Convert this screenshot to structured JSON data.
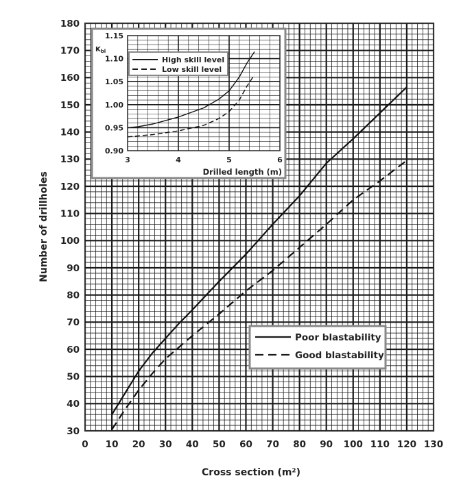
{
  "chart_data": [
    {
      "type": "line",
      "xlabel": "Cross section (m²)",
      "ylabel": "Number of drillholes",
      "xlim": [
        0,
        130
      ],
      "ylim": [
        30,
        180
      ],
      "xticks": [
        0,
        10,
        20,
        30,
        40,
        50,
        60,
        70,
        80,
        90,
        100,
        110,
        120,
        130
      ],
      "yticks": [
        30,
        40,
        50,
        60,
        70,
        80,
        90,
        100,
        110,
        120,
        130,
        140,
        150,
        160,
        170,
        180
      ],
      "grid": true,
      "legend_position": "lower-right",
      "series": [
        {
          "name": "Poor blastability",
          "style": "solid",
          "x": [
            10,
            15,
            20,
            25,
            30,
            35,
            40,
            50,
            60,
            70,
            80,
            90,
            100,
            110,
            120
          ],
          "y": [
            36,
            44,
            52,
            58.5,
            64,
            69.5,
            74.5,
            85,
            95,
            106,
            116.5,
            128.5,
            137.5,
            147,
            156.5
          ]
        },
        {
          "name": "Good blastability",
          "style": "dashed",
          "x": [
            10,
            15,
            20,
            25,
            30,
            40,
            50,
            60,
            70,
            80,
            90,
            100,
            110,
            120
          ],
          "y": [
            30.5,
            38,
            45,
            51,
            56.5,
            65,
            73,
            81.5,
            89,
            97.5,
            106,
            115,
            122,
            129.5
          ]
        }
      ]
    },
    {
      "type": "line",
      "xlabel": "Drilled length (m)",
      "ylabel": "K",
      "ylabel_sub": "bl",
      "xlim": [
        3,
        6
      ],
      "ylim": [
        0.9,
        1.15
      ],
      "xticks": [
        3,
        4,
        5,
        6
      ],
      "yticks": [
        "0.90",
        "0.95",
        "1.00",
        "1.05",
        "1.10",
        "1.15"
      ],
      "grid": true,
      "legend_position": "top-left",
      "series": [
        {
          "name": "High skill level",
          "style": "solid",
          "x": [
            3,
            3.2,
            3.5,
            4,
            4.5,
            4.8,
            5.0,
            5.2,
            5.35,
            5.5
          ],
          "y": [
            0.95,
            0.952,
            0.958,
            0.973,
            0.993,
            1.012,
            1.03,
            1.06,
            1.09,
            1.115
          ]
        },
        {
          "name": "Low skill level",
          "style": "dashed",
          "x": [
            3,
            3.5,
            4,
            4.5,
            4.8,
            5.0,
            5.2,
            5.35,
            5.5
          ],
          "y": [
            0.93,
            0.935,
            0.943,
            0.955,
            0.97,
            0.985,
            1.01,
            1.04,
            1.065
          ]
        }
      ]
    }
  ]
}
